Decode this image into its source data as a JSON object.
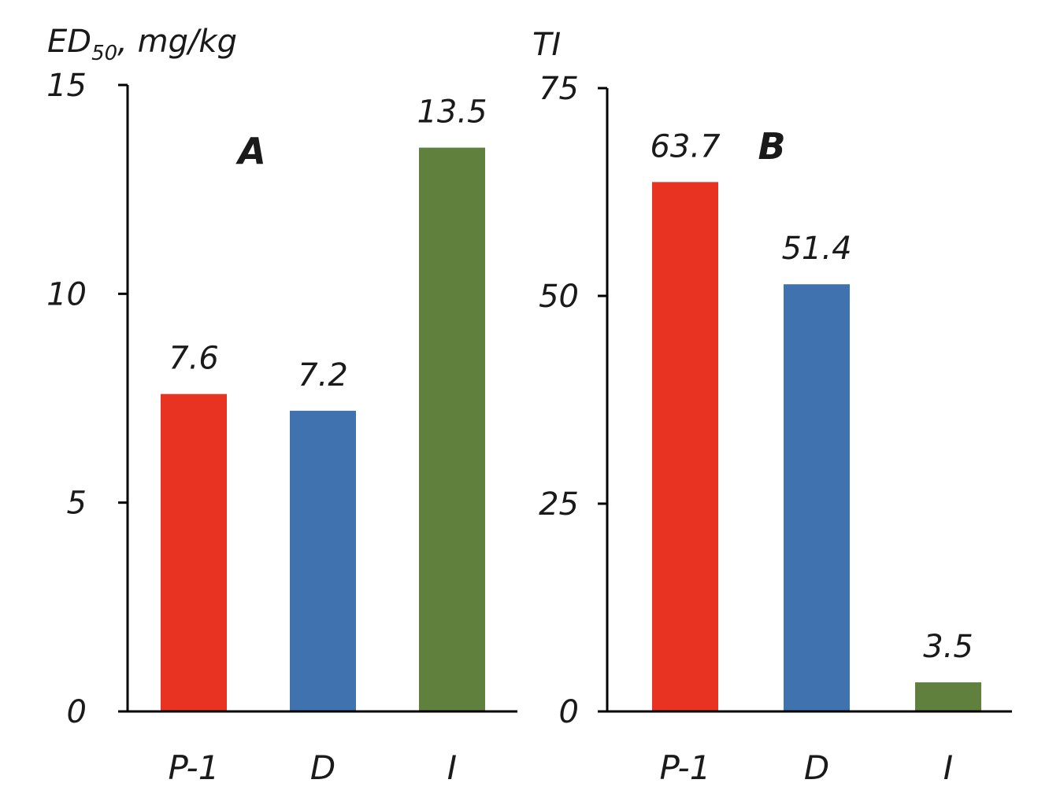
{
  "chart_data": [
    {
      "type": "bar",
      "panel_label": "A",
      "ylabel": {
        "main": "ED",
        "subscript": "50",
        "suffix": ", mg/kg"
      },
      "categories": [
        "P-1",
        "D",
        "I"
      ],
      "values": [
        7.6,
        7.2,
        13.5
      ],
      "value_labels": [
        "7.6",
        "7.2",
        "13.5"
      ],
      "colors": [
        "#e83323",
        "#4172b0",
        "#5f813d"
      ],
      "ylim": [
        0,
        15
      ],
      "yticks": [
        0,
        5,
        10,
        15
      ],
      "grid": false,
      "legend": "none"
    },
    {
      "type": "bar",
      "panel_label": "B",
      "ylabel": {
        "main": "TI"
      },
      "categories": [
        "P-1",
        "D",
        "I"
      ],
      "values": [
        63.7,
        51.4,
        3.5
      ],
      "value_labels": [
        "63.7",
        "51.4",
        "3.5"
      ],
      "colors": [
        "#e83323",
        "#4172b0",
        "#5f813d"
      ],
      "ylim": [
        0,
        75
      ],
      "yticks": [
        0,
        25,
        50,
        75
      ],
      "grid": false,
      "legend": "none"
    }
  ]
}
